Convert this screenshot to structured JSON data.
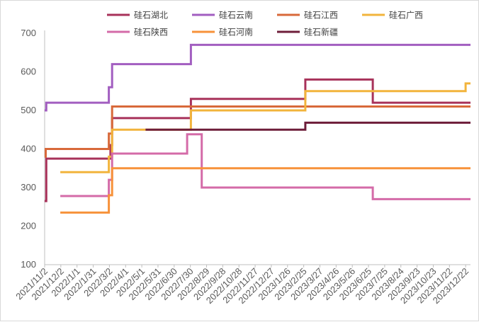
{
  "chart_data": {
    "type": "line",
    "title": "",
    "xlabel": "",
    "ylabel": "",
    "ylim": [
      100,
      700
    ],
    "yticks": [
      100,
      200,
      300,
      400,
      500,
      600,
      700
    ],
    "grid": false,
    "legend_position": "top",
    "xticks": [
      "2021/11/2",
      "2021/12/2",
      "2022/1/1",
      "2022/1/31",
      "2022/3/2",
      "2022/4/1",
      "2022/5/1",
      "2022/5/31",
      "2022/6/30",
      "2022/7/30",
      "2022/8/29",
      "2022/9/28",
      "2022/10/28",
      "2022/11/27",
      "2022/12/27",
      "2023/1/26",
      "2023/2/25",
      "2023/3/27",
      "2023/4/26",
      "2023/5/26",
      "2023/6/25",
      "2023/7/25",
      "2023/8/24",
      "2023/9/23",
      "2023/10/23",
      "2023/11/22",
      "2023/12/22"
    ],
    "series": [
      {
        "name": "硅石湖北",
        "color": "#A8325A",
        "points": [
          [
            "2021/11/2",
            265
          ],
          [
            "2021/11/5",
            375
          ],
          [
            "2022/3/4",
            410
          ],
          [
            "2022/3/7",
            480
          ],
          [
            "2022/7/31",
            530
          ],
          [
            "2023/2/28",
            580
          ],
          [
            "2023/7/3",
            520
          ],
          [
            "2023/12/31",
            520
          ]
        ]
      },
      {
        "name": "硅石云南",
        "color": "#A25EC0",
        "points": [
          [
            "2021/11/2",
            500
          ],
          [
            "2021/11/5",
            520
          ],
          [
            "2022/3/1",
            560
          ],
          [
            "2022/3/7",
            620
          ],
          [
            "2022/7/31",
            670
          ],
          [
            "2023/12/31",
            670
          ]
        ]
      },
      {
        "name": "硅石江西",
        "color": "#D8693A",
        "points": [
          [
            "2021/11/2",
            380
          ],
          [
            "2021/11/4",
            400
          ],
          [
            "2022/3/1",
            440
          ],
          [
            "2022/3/7",
            510
          ],
          [
            "2023/12/31",
            510
          ]
        ]
      },
      {
        "name": "硅石广西",
        "color": "#F2B43C",
        "points": [
          [
            "2021/12/1",
            340
          ],
          [
            "2022/3/1",
            380
          ],
          [
            "2022/3/7",
            450
          ],
          [
            "2022/7/31",
            500
          ],
          [
            "2023/2/28",
            550
          ],
          [
            "2023/12/22",
            570
          ],
          [
            "2023/12/31",
            570
          ]
        ]
      },
      {
        "name": "硅石陕西",
        "color": "#D46BA8",
        "points": [
          [
            "2021/12/1",
            278
          ],
          [
            "2022/3/1",
            320
          ],
          [
            "2022/3/7",
            388
          ],
          [
            "2022/7/24",
            438
          ],
          [
            "2022/8/20",
            300
          ],
          [
            "2023/7/3",
            270
          ],
          [
            "2023/12/31",
            270
          ]
        ]
      },
      {
        "name": "硅石河南",
        "color": "#F7923A",
        "points": [
          [
            "2021/12/1",
            235
          ],
          [
            "2022/3/1",
            280
          ],
          [
            "2022/3/7",
            350
          ],
          [
            "2023/12/31",
            350
          ]
        ]
      },
      {
        "name": "硅石新疆",
        "color": "#6E1E3A",
        "points": [
          [
            "2022/5/8",
            450
          ],
          [
            "2023/2/28",
            468
          ],
          [
            "2023/12/31",
            468
          ]
        ]
      }
    ]
  }
}
